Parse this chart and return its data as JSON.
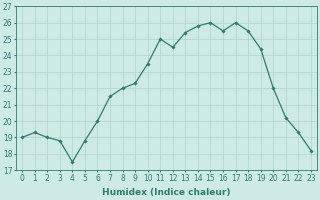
{
  "xlabel": "Humidex (Indice chaleur)",
  "x": [
    0,
    1,
    2,
    3,
    4,
    5,
    6,
    7,
    8,
    9,
    10,
    11,
    12,
    13,
    14,
    15,
    16,
    17,
    18,
    19,
    20,
    21,
    22,
    23
  ],
  "y": [
    19.0,
    19.3,
    19.0,
    18.8,
    17.5,
    18.8,
    20.0,
    21.5,
    22.0,
    22.3,
    23.5,
    25.0,
    24.5,
    25.4,
    25.8,
    26.0,
    25.5,
    26.0,
    25.5,
    24.4,
    22.0,
    20.2,
    19.3,
    18.2
  ],
  "line_color": "#2e7d6e",
  "marker": "D",
  "marker_size": 1.8,
  "line_width": 0.9,
  "bg_color": "#ceeae4",
  "grid_color": "#aed4cc",
  "tick_color": "#2e7d6e",
  "label_color": "#2e7d6e",
  "ylim": [
    17,
    27
  ],
  "yticks": [
    17,
    18,
    19,
    20,
    21,
    22,
    23,
    24,
    25,
    26,
    27
  ],
  "xticks": [
    0,
    1,
    2,
    3,
    4,
    5,
    6,
    7,
    8,
    9,
    10,
    11,
    12,
    13,
    14,
    15,
    16,
    17,
    18,
    19,
    20,
    21,
    22,
    23
  ],
  "xtick_labels": [
    "0",
    "1",
    "2",
    "3",
    "4",
    "5",
    "6",
    "7",
    "8",
    "9",
    "10",
    "11",
    "12",
    "13",
    "14",
    "15",
    "16",
    "17",
    "18",
    "19",
    "20",
    "21",
    "22",
    "23"
  ],
  "font_size": 5.5,
  "xlabel_fontsize": 6.5
}
